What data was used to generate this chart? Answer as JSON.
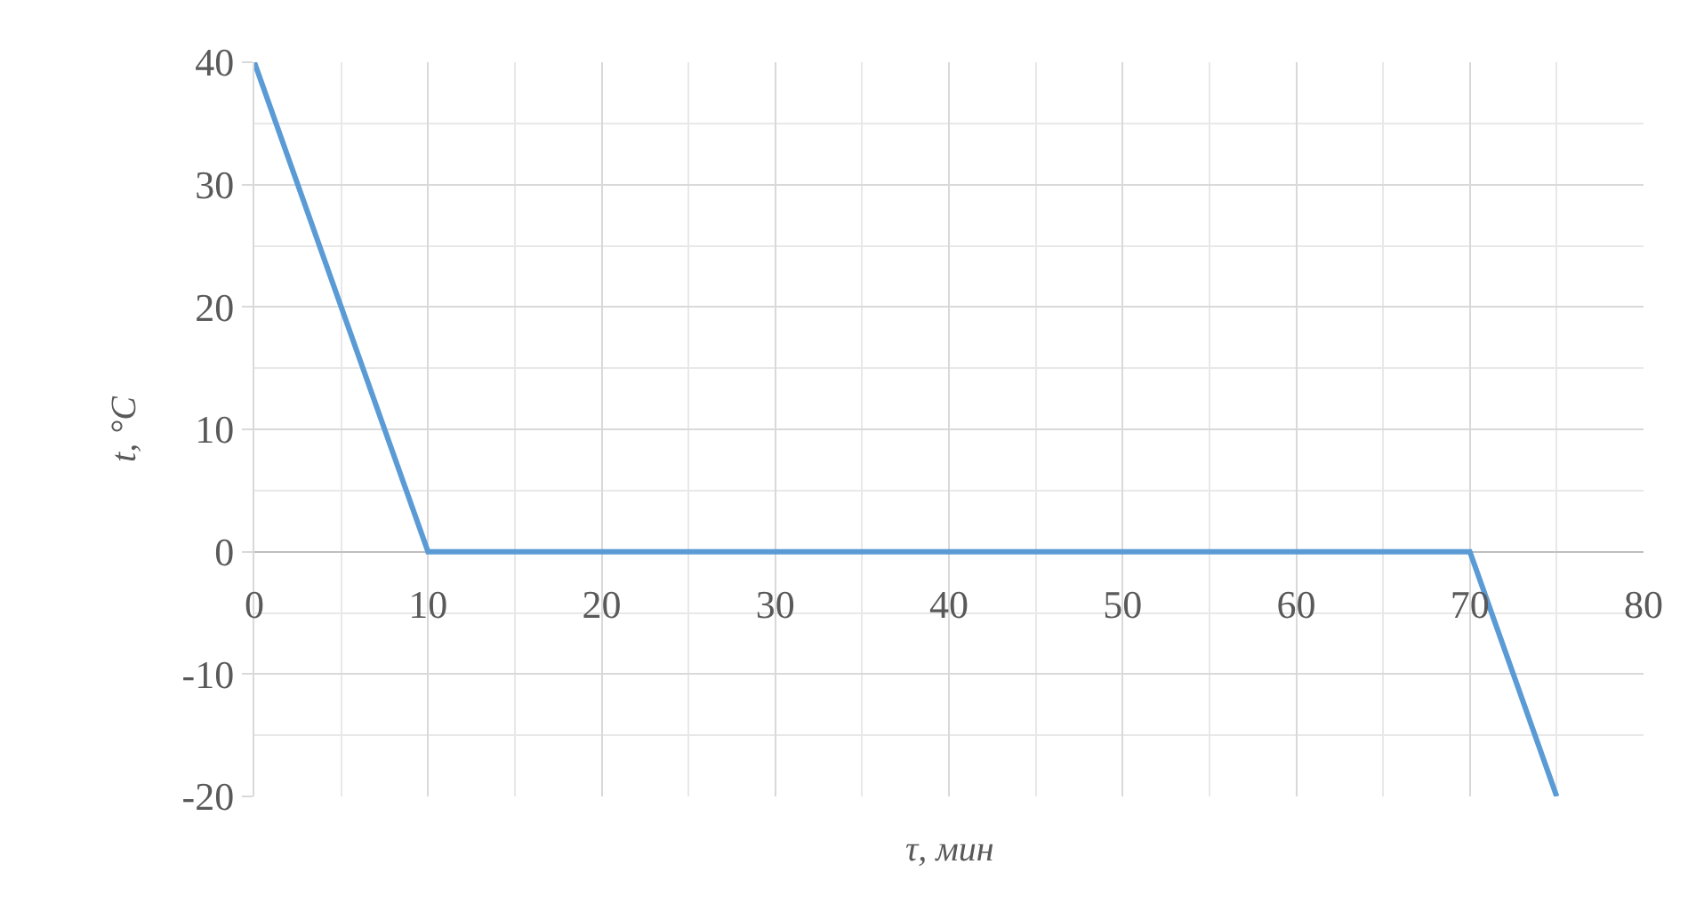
{
  "chart_data": {
    "type": "line",
    "xlabel": "τ, мин",
    "ylabel": "t, °C",
    "x": [
      0,
      10,
      70,
      75
    ],
    "series": [
      {
        "color": "#5b9bd5",
        "values": [
          40,
          0,
          0,
          -20
        ]
      }
    ],
    "xlim": [
      0,
      80
    ],
    "xticks": [
      0,
      10,
      20,
      30,
      40,
      50,
      60,
      70,
      80
    ],
    "ylim": [
      -20,
      40
    ],
    "yticks": [
      -20,
      -10,
      0,
      10,
      20,
      30,
      40
    ],
    "grid": true,
    "marker": "none",
    "line_style": "solid"
  }
}
